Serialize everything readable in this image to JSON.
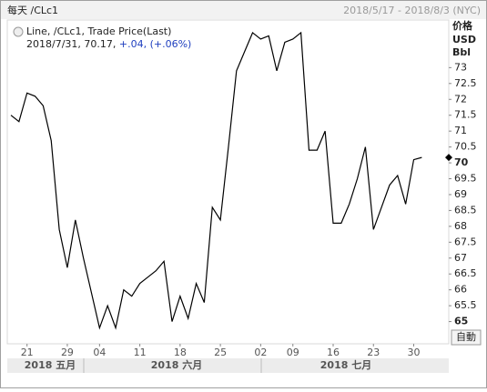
{
  "chart_data": {
    "type": "line",
    "title": "每天 /CLc1",
    "subtitle": "2018/5/17 - 2018/8/3 (NYC)",
    "legend": {
      "line1": "Line, /CLc1, Trade Price(Last)",
      "line2": "2018/7/31, 70.17,",
      "change": "+.04, (+.06%)"
    },
    "y_axis_label": [
      "价格",
      "USD",
      "Bbl"
    ],
    "button": "自動",
    "months": [
      "2018 五月",
      "2018 六月",
      "2018 七月"
    ],
    "categories": [
      null,
      null,
      "21",
      null,
      null,
      null,
      null,
      "29",
      null,
      null,
      null,
      "04",
      null,
      null,
      null,
      null,
      "11",
      null,
      null,
      null,
      null,
      "18",
      null,
      null,
      null,
      null,
      "25",
      null,
      null,
      null,
      null,
      "02",
      null,
      null,
      null,
      "09",
      null,
      null,
      null,
      null,
      "16",
      null,
      null,
      null,
      null,
      "23",
      null,
      null,
      null,
      null,
      "30",
      null
    ],
    "series": [
      {
        "name": "/CLc1",
        "color": "#000000",
        "values": [
          71.5,
          71.3,
          72.2,
          72.1,
          71.8,
          70.7,
          67.9,
          66.7,
          68.2,
          67.0,
          65.9,
          64.8,
          65.5,
          64.8,
          66.0,
          65.8,
          66.2,
          66.4,
          66.6,
          66.9,
          65.0,
          65.8,
          65.1,
          66.2,
          65.6,
          68.6,
          68.2,
          70.5,
          72.9,
          73.5,
          74.1,
          73.9,
          74.0,
          72.9,
          73.8,
          73.9,
          74.1,
          70.4,
          70.4,
          71.0,
          68.1,
          68.1,
          68.7,
          69.5,
          70.5,
          67.9,
          68.6,
          69.3,
          69.6,
          68.7,
          70.1,
          70.17
        ]
      }
    ],
    "ylim": [
      64.3,
      74.5
    ],
    "yticks": [
      65,
      65.5,
      66,
      66.5,
      67,
      67.5,
      68,
      68.5,
      69,
      69.5,
      70,
      70.5,
      71,
      71.5,
      72,
      72.5,
      73
    ],
    "grid": false
  }
}
